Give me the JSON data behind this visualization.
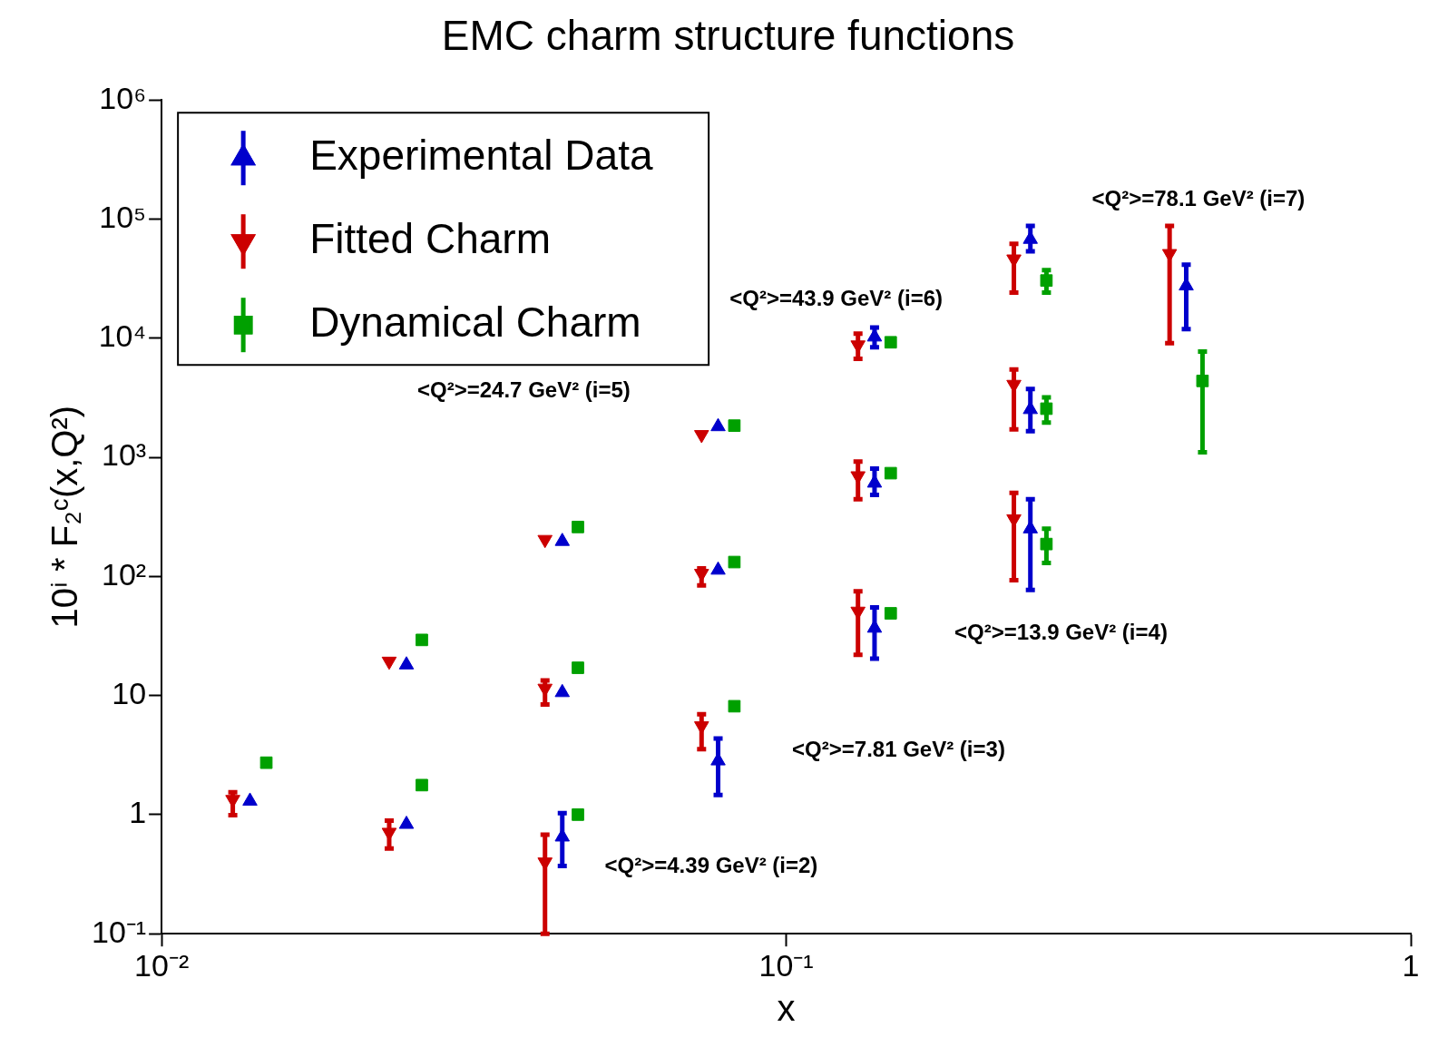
{
  "chart_data": {
    "type": "scatter",
    "title": "EMC charm structure functions",
    "xlabel": "x",
    "ylabel": "10ⁱ * F₂ᶜ(x,Q²)",
    "log": "xy",
    "grid": false,
    "legend": "top left",
    "xlim": [
      0.01,
      1
    ],
    "xticks": [
      {
        "value": 0.01,
        "label": "10⁻²"
      },
      {
        "value": 0.1,
        "label": "10⁻¹"
      },
      1
    ],
    "ylim": [
      0.1,
      1000000
    ],
    "yticks": [
      {
        "value": 0.1,
        "label": "10⁻¹"
      },
      1,
      10,
      {
        "value": 100,
        "label": "10²"
      },
      {
        "value": 1000,
        "label": "10³"
      },
      {
        "value": 10000,
        "label": "10⁴"
      },
      {
        "value": 100000,
        "label": "10⁵"
      },
      {
        "value": 1000000,
        "label": "10⁶"
      }
    ],
    "series": [
      {
        "name": "Experimental Data",
        "color": "#0000cc",
        "marker": "triangle",
        "x": [
          0.01385,
          0.02466,
          0.02466,
          0.0438,
          0.0438,
          0.0438,
          0.0778,
          0.0778,
          0.0778,
          0.1385,
          0.1385,
          0.1385,
          0.246,
          0.246,
          0.246,
          0.437
        ],
        "values": [
          1.3,
          0.83,
          18.1,
          0.65,
          10.6,
          197,
          2.83,
          113,
          1811,
          36.8,
          608,
          10250,
          251,
          2520,
          67700,
          27500
        ],
        "errors": [
          null,
          null,
          null,
          [
            0.37,
            1.03
          ],
          null,
          null,
          [
            1.46,
            4.36
          ],
          null,
          null,
          [
            20.4,
            55
          ],
          [
            484,
            803
          ],
          [
            8400,
            12300
          ],
          [
            77,
            445
          ],
          [
            1660,
            3740
          ],
          [
            53600,
            87600
          ],
          [
            11900,
            41400
          ]
        ]
      },
      {
        "name": "Fitted Charm",
        "color": "#cc0000",
        "marker": "triangle-down",
        "x": [
          0.013,
          0.02314,
          0.02314,
          0.0411,
          0.0411,
          0.0411,
          0.0732,
          0.0732,
          0.0732,
          0.1303,
          0.1303,
          0.1303,
          0.2315,
          0.2315,
          0.2315,
          0.411
        ],
        "values": [
          1.34,
          0.71,
          19.4,
          0.4,
          11.5,
          204,
          5.56,
          106,
          1550,
          51,
          699,
          8770,
          304,
          4090,
          46200,
          51300
        ],
        "errors": [
          [
            0.99,
            1.54
          ],
          [
            0.52,
            0.89
          ],
          null,
          [
            0.1,
            0.68
          ],
          [
            8.4,
            13.4
          ],
          null,
          [
            3.54,
            6.96
          ],
          [
            84,
            117
          ],
          null,
          [
            22,
            75
          ],
          [
            444,
            920
          ],
          [
            6700,
            10900
          ],
          [
            93,
            503
          ],
          [
            1720,
            5460
          ],
          [
            24200,
            62000
          ],
          [
            9100,
            87600
          ]
        ]
      },
      {
        "name": "Dynamical Charm",
        "color": "#00a000",
        "marker": "square",
        "x": [
          0.01471,
          0.0261,
          0.0261,
          0.0464,
          0.0464,
          0.0464,
          0.0826,
          0.0826,
          0.0826,
          0.147,
          0.147,
          0.147,
          0.261,
          0.261,
          0.261,
          0.464
        ],
        "values": [
          2.73,
          1.77,
          29.3,
          1.0,
          17.1,
          260,
          8.13,
          132,
          1845,
          49,
          736,
          9240,
          187,
          2560,
          30500,
          4380
        ],
        "errors": [
          null,
          null,
          null,
          null,
          null,
          null,
          null,
          null,
          null,
          null,
          null,
          null,
          [
            130,
            251
          ],
          [
            1960,
            3180
          ],
          [
            24200,
            37300
          ],
          [
            1100,
            7720
          ]
        ]
      }
    ],
    "annotations": [
      "<Q²>=78.1 GeV² (i=7)",
      "<Q²>=43.9 GeV² (i=6)",
      "<Q²>=24.7 GeV² (i=5)",
      "<Q²>=13.9 GeV² (i=4)",
      "<Q²>=7.81 GeV² (i=3)",
      "<Q²>=4.39 GeV² (i=2)"
    ]
  }
}
